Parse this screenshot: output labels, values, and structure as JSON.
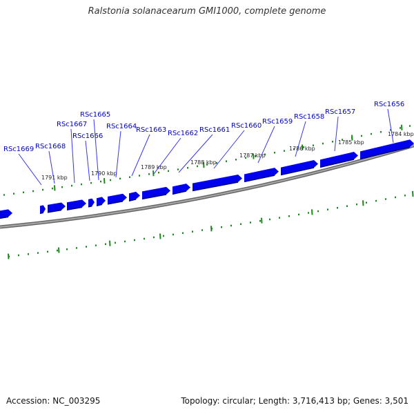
{
  "title": "Ralstonia solanacearum GMI1000, complete genome",
  "footer": {
    "accession": "Accession: NC_003295",
    "summary": "Topology: circular; Length: 3,716,413 bp; Genes: 3,501"
  },
  "colors": {
    "gene": "#0000ee",
    "label": "#0000cc",
    "tick": "#1a8a1a",
    "backbone": "#888888"
  },
  "kbp_labels": [
    "1791 kbp",
    "1790 kbp",
    "1789 kbp",
    "1788 kbp",
    "1787 kbp",
    "1786 kbp",
    "1785 kbp",
    "1784 kbp"
  ],
  "gene_labels": [
    "RSc1669",
    "RSc1668",
    "RSc1667",
    "RSc1666",
    "RSc1665",
    "RSc1664",
    "RSc1663",
    "RSc1662",
    "RSc1661",
    "RSc1660",
    "RSc1659",
    "RSc1658",
    "RSc1657",
    "RSc1656"
  ]
}
